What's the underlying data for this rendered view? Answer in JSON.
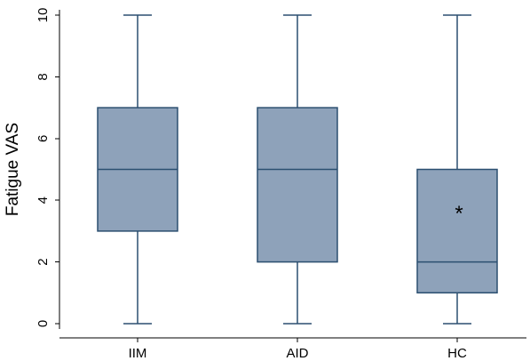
{
  "chart_data": {
    "type": "box",
    "ylabel": "Fatigue VAS",
    "xlabel": "",
    "ylim": [
      0,
      10
    ],
    "y_ticks": [
      "0",
      "2",
      "4",
      "6",
      "8",
      "10"
    ],
    "y_tick_values": [
      0,
      2,
      4,
      6,
      8,
      10
    ],
    "categories": [
      "IIM",
      "AID",
      "HC"
    ],
    "boxes": [
      {
        "category": "IIM",
        "min": 0,
        "q1": 3,
        "median": 5,
        "q3": 7,
        "max": 10,
        "annotation": ""
      },
      {
        "category": "AID",
        "min": 0,
        "q1": 2,
        "median": 5,
        "q3": 7,
        "max": 10,
        "annotation": ""
      },
      {
        "category": "HC",
        "min": 0,
        "q1": 1,
        "median": 2,
        "q3": 5,
        "max": 10,
        "annotation": "*"
      }
    ],
    "grid": false,
    "legend": "none",
    "colors": {
      "box_fill": "#8EA2BA",
      "box_stroke": "#2B4F70",
      "whisker": "#2B4F70",
      "median": "#2B4F70"
    }
  }
}
